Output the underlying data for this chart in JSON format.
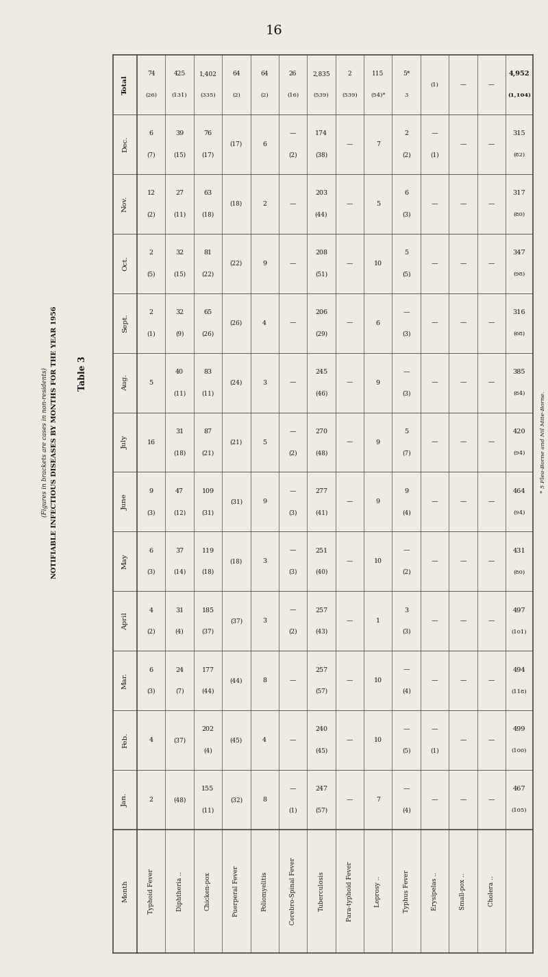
{
  "page_number": "16",
  "title": "Table 3",
  "subtitle": "NOTIFIABLE INFECTIOUS DISEASES BY MONTHS FOR THE YEAR 1956",
  "subtitle2": "(Figures in brackets are cases in non-residents)",
  "footnote": "* 5 Flea-Borne and Nil Mite-Borne.",
  "bg_color": "#f0ebe0",
  "text_color": "#111111",
  "line_color": "#444444",
  "diseases": [
    "Typhoid Fever",
    "Diphtheria ..",
    "Chicken-pox",
    "Puerperal Fever",
    "Poliomyelitis",
    "Cerebro-Spinal Fever",
    "Tuberculosis",
    "Para-typhoid Fever",
    "Leprosy ..",
    "Typhus Fever",
    "Erysipelas ..",
    "Small-pox ..",
    "Cholera .."
  ],
  "months": [
    "Jan.",
    "Feb.",
    "Mar.",
    "April",
    "May",
    "June",
    "July",
    "Aug.",
    "Sept.",
    "Oct.",
    "Nov.",
    "Dec.",
    "Total"
  ],
  "data": {
    "Jan.": [
      [
        "2",
        ""
      ],
      [
        "",
        "(48)"
      ],
      [
        "155",
        "(11)"
      ],
      [
        "",
        "(32)"
      ],
      [
        "8",
        ""
      ],
      [
        "—",
        "(1)"
      ],
      [
        "247",
        "(57)"
      ],
      [
        "—",
        ""
      ],
      [
        "7",
        ""
      ],
      [
        "—",
        "(4)"
      ],
      [
        "—",
        ""
      ],
      [
        "—",
        ""
      ],
      [
        "—",
        ""
      ]
    ],
    "Feb.": [
      [
        "4",
        ""
      ],
      [
        "",
        "(37)"
      ],
      [
        "202",
        "(4)"
      ],
      [
        "",
        "(45)"
      ],
      [
        "4",
        ""
      ],
      [
        "—",
        ""
      ],
      [
        "240",
        "(45)"
      ],
      [
        "—",
        ""
      ],
      [
        "10",
        ""
      ],
      [
        "",
        "(5)"
      ],
      [
        "—",
        "(1)"
      ],
      [
        "—",
        ""
      ],
      [
        "—",
        ""
      ]
    ],
    "Mar.": [
      [
        "6",
        "(3)"
      ],
      [
        "24",
        "(7)"
      ],
      [
        "177",
        "(44)"
      ],
      [
        "",
        "(44)"
      ],
      [
        "8",
        ""
      ],
      [
        "—",
        ""
      ],
      [
        "257",
        "(57)"
      ],
      [
        "—",
        ""
      ],
      [
        "10",
        ""
      ],
      [
        "",
        "(4)"
      ],
      [
        "—",
        ""
      ],
      [
        "—",
        ""
      ],
      [
        "—",
        ""
      ]
    ],
    "April": [
      [
        "4",
        "(2)"
      ],
      [
        "31",
        "(4)"
      ],
      [
        "185",
        "(37)"
      ],
      [
        "",
        "(37)"
      ],
      [
        "3",
        ""
      ],
      [
        "—",
        "(2)"
      ],
      [
        "257",
        "(43)"
      ],
      [
        "—",
        ""
      ],
      [
        "1",
        ""
      ],
      [
        "3",
        "(3)"
      ],
      [
        "—",
        ""
      ],
      [
        "—",
        ""
      ],
      [
        "—",
        ""
      ]
    ],
    "May": [
      [
        "6",
        "(3)"
      ],
      [
        "37",
        "(14)"
      ],
      [
        "119",
        "(18)"
      ],
      [
        "",
        "(18)"
      ],
      [
        "3",
        ""
      ],
      [
        "—",
        "(3)"
      ],
      [
        "251",
        "(40)"
      ],
      [
        "—",
        ""
      ],
      [
        "10",
        ""
      ],
      [
        "",
        "(2)"
      ],
      [
        "—",
        ""
      ],
      [
        "—",
        ""
      ],
      [
        "—",
        ""
      ]
    ],
    "June": [
      [
        "9",
        "(3)"
      ],
      [
        "47",
        "(12)"
      ],
      [
        "109",
        "(31)"
      ],
      [
        "",
        "(31)"
      ],
      [
        "9",
        ""
      ],
      [
        "—",
        "(3)"
      ],
      [
        "277",
        "(41)"
      ],
      [
        "—",
        ""
      ],
      [
        "9",
        ""
      ],
      [
        "9",
        "(4)"
      ],
      [
        "—",
        ""
      ],
      [
        "—",
        ""
      ],
      [
        "—",
        ""
      ]
    ],
    "July": [
      [
        "16",
        ""
      ],
      [
        "31",
        "(18)"
      ],
      [
        "87",
        "(21)"
      ],
      [
        "",
        "(21)"
      ],
      [
        "5",
        ""
      ],
      [
        "—",
        "(2)"
      ],
      [
        "270",
        "(48)"
      ],
      [
        "—",
        ""
      ],
      [
        "9",
        ""
      ],
      [
        "5",
        "(7)"
      ],
      [
        "—",
        ""
      ],
      [
        "—",
        ""
      ],
      [
        "—",
        ""
      ]
    ],
    "Aug.": [
      [
        "5",
        ""
      ],
      [
        "40",
        "(11)"
      ],
      [
        "83",
        "(11)"
      ],
      [
        "",
        "(24)"
      ],
      [
        "3",
        ""
      ],
      [
        "—",
        ""
      ],
      [
        "245",
        "(46)"
      ],
      [
        "—",
        ""
      ],
      [
        "9",
        ""
      ],
      [
        "",
        "(3)"
      ],
      [
        "—",
        ""
      ],
      [
        "—",
        ""
      ],
      [
        "—",
        ""
      ]
    ],
    "Sept.": [
      [
        "2",
        "(1)"
      ],
      [
        "32",
        "(9)"
      ],
      [
        "65",
        "(26)"
      ],
      [
        "",
        "(26)"
      ],
      [
        "4",
        ""
      ],
      [
        "—",
        ""
      ],
      [
        "206",
        "(29)"
      ],
      [
        "—",
        ""
      ],
      [
        "6",
        ""
      ],
      [
        "",
        "(3)"
      ],
      [
        "—",
        ""
      ],
      [
        "—",
        ""
      ],
      [
        "—",
        ""
      ]
    ],
    "Oct.": [
      [
        "2",
        "(5)"
      ],
      [
        "32",
        "(15)"
      ],
      [
        "81",
        "(22)"
      ],
      [
        "",
        "(22)"
      ],
      [
        "9",
        ""
      ],
      [
        "—",
        ""
      ],
      [
        "208",
        "(51)"
      ],
      [
        "—",
        ""
      ],
      [
        "10",
        ""
      ],
      [
        "5",
        "(5)"
      ],
      [
        "—",
        ""
      ],
      [
        "—",
        ""
      ],
      [
        "—",
        ""
      ]
    ],
    "Nov.": [
      [
        "12",
        "(2)"
      ],
      [
        "27",
        "(11)"
      ],
      [
        "63",
        "(18)"
      ],
      [
        "",
        "(18)"
      ],
      [
        "2",
        ""
      ],
      [
        "—",
        ""
      ],
      [
        "203",
        "(44)"
      ],
      [
        "—",
        ""
      ],
      [
        "5",
        ""
      ],
      [
        "6",
        "(3)"
      ],
      [
        "—",
        ""
      ],
      [
        "—",
        ""
      ],
      [
        "—",
        ""
      ]
    ],
    "Dec.": [
      [
        "6",
        "(7)"
      ],
      [
        "39",
        "(15)"
      ],
      [
        "76",
        "(17)"
      ],
      [
        "",
        "(17)"
      ],
      [
        "6",
        ""
      ],
      [
        "—",
        "(2)"
      ],
      [
        "174",
        "(38)"
      ],
      [
        "—",
        ""
      ],
      [
        "7",
        ""
      ],
      [
        "2",
        "(2)"
      ],
      [
        "—",
        "(1)"
      ],
      [
        "—",
        ""
      ],
      [
        "—",
        ""
      ]
    ],
    "Total": [
      [
        "74",
        "(26)"
      ],
      [
        "425",
        "(131)"
      ],
      [
        "1,402",
        "(335)"
      ],
      [
        "64",
        "(2)"
      ],
      [
        "64",
        "(2)"
      ],
      [
        [
          "26",
          "(16)"
        ]
      ],
      [
        "2,835",
        "(539)"
      ],
      [
        "2",
        "(539)"
      ],
      [
        "115",
        "(54)*"
      ],
      [
        [
          "5*",
          "3"
        ]
      ],
      [
        [
          "",
          "(1)"
        ]
      ],
      [
        "—",
        ""
      ],
      [
        "—",
        ""
      ]
    ]
  },
  "month_totals": {
    "Jan.": [
      "467",
      "(105)"
    ],
    "Feb.": [
      "499",
      "(100)"
    ],
    "Mar.": [
      "494",
      "(118)"
    ],
    "April": [
      "497",
      "(101)"
    ],
    "May": [
      "431",
      "(80)"
    ],
    "June": [
      "464",
      "(94)"
    ],
    "July": [
      "420",
      "(94)"
    ],
    "Aug.": [
      "385",
      "(84)"
    ],
    "Sept.": [
      "316",
      "(68)"
    ],
    "Oct.": [
      "347",
      "(98)"
    ],
    "Nov.": [
      "317",
      "(80)"
    ],
    "Dec.": [
      "315",
      "(82)"
    ],
    "Total": [
      "4,952",
      "(1,104)"
    ]
  }
}
